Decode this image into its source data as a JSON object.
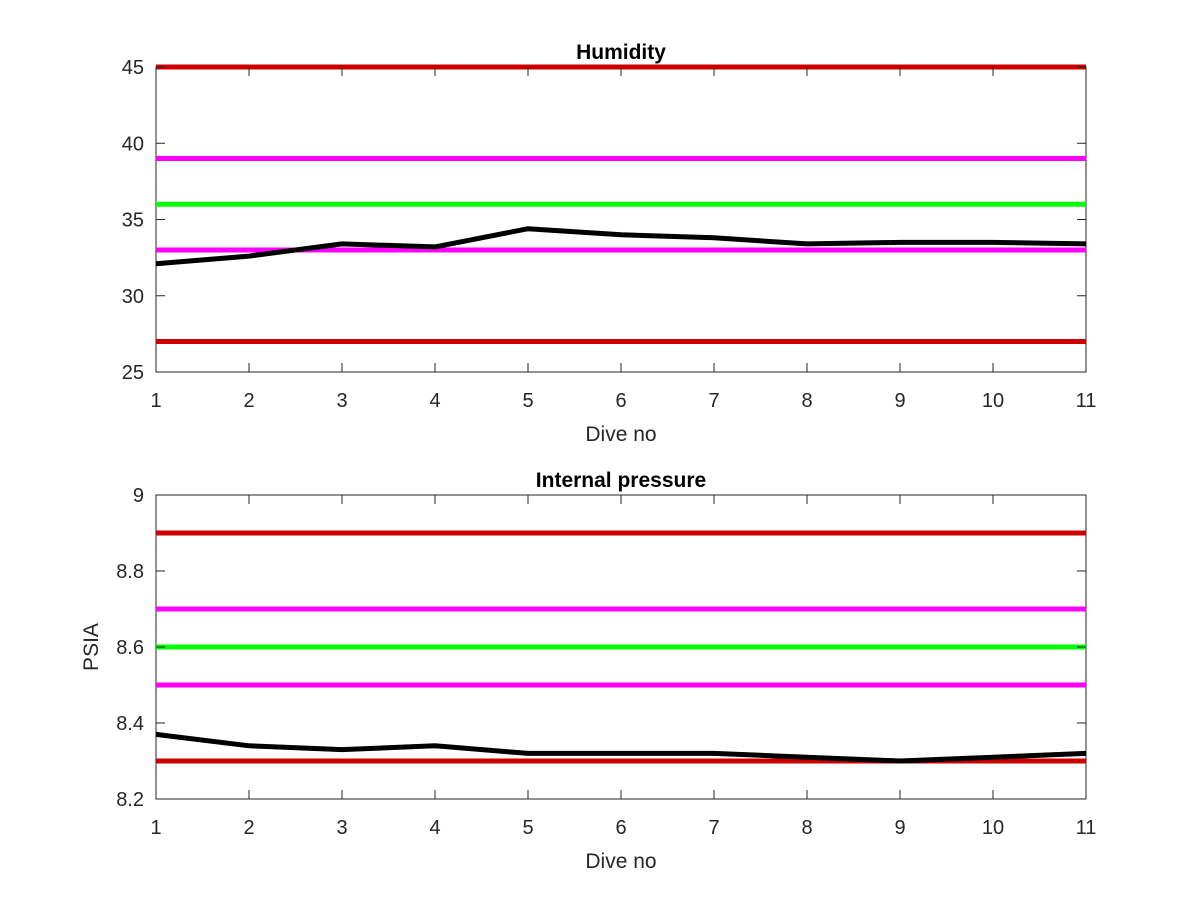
{
  "chart_data": [
    {
      "type": "line",
      "title": "Humidity",
      "xlabel": "Dive no",
      "ylabel": "",
      "xlim": [
        1,
        11
      ],
      "ylim": [
        25,
        45
      ],
      "xticks": [
        1,
        2,
        3,
        4,
        5,
        6,
        7,
        8,
        9,
        10,
        11
      ],
      "yticks": [
        25,
        30,
        35,
        40,
        45
      ],
      "grid": false,
      "legend": "none",
      "reference_lines": [
        {
          "y": 45,
          "color": "#cc0000"
        },
        {
          "y": 39,
          "color": "#ff00ff"
        },
        {
          "y": 36,
          "color": "#00ff00"
        },
        {
          "y": 33,
          "color": "#ff00ff"
        },
        {
          "y": 27,
          "color": "#cc0000"
        }
      ],
      "series": [
        {
          "color": "#000000",
          "x": [
            1,
            2,
            3,
            4,
            5,
            6,
            7,
            8,
            9,
            10,
            11
          ],
          "values": [
            32.1,
            32.6,
            33.4,
            33.2,
            34.4,
            34.0,
            33.8,
            33.4,
            33.5,
            33.5,
            33.4
          ]
        }
      ]
    },
    {
      "type": "line",
      "title": "Internal pressure",
      "xlabel": "Dive no",
      "ylabel": "PSIA",
      "xlim": [
        1,
        11
      ],
      "ylim": [
        8.2,
        9
      ],
      "xticks": [
        1,
        2,
        3,
        4,
        5,
        6,
        7,
        8,
        9,
        10,
        11
      ],
      "yticks": [
        8.2,
        8.4,
        8.6,
        8.8,
        9
      ],
      "grid": false,
      "legend": "none",
      "reference_lines": [
        {
          "y": 8.9,
          "color": "#cc0000"
        },
        {
          "y": 8.7,
          "color": "#ff00ff"
        },
        {
          "y": 8.6,
          "color": "#00ff00"
        },
        {
          "y": 8.5,
          "color": "#ff00ff"
        },
        {
          "y": 8.3,
          "color": "#cc0000"
        }
      ],
      "series": [
        {
          "color": "#000000",
          "x": [
            1,
            2,
            3,
            4,
            5,
            6,
            7,
            8,
            9,
            10,
            11
          ],
          "values": [
            8.37,
            8.34,
            8.33,
            8.34,
            8.32,
            8.32,
            8.32,
            8.31,
            8.3,
            8.31,
            8.32
          ]
        }
      ]
    }
  ]
}
